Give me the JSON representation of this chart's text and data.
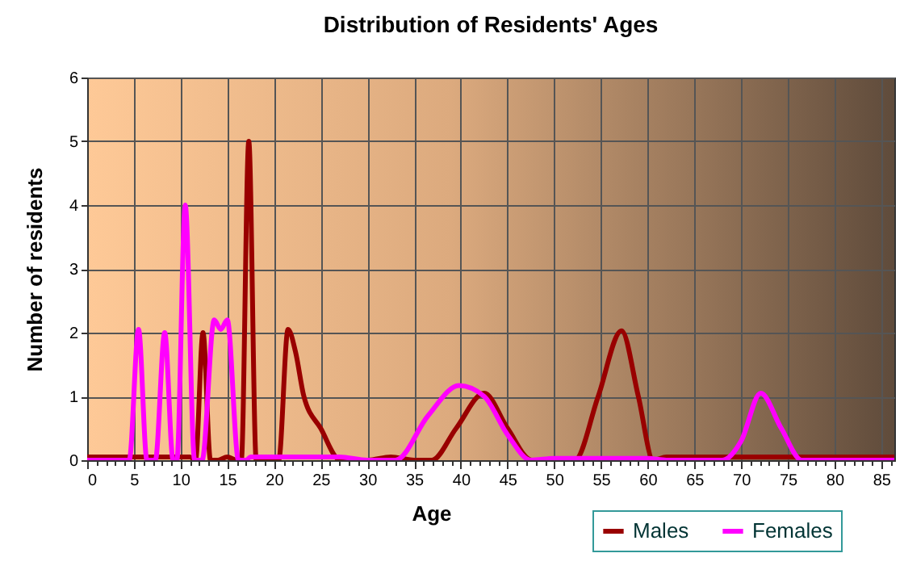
{
  "chart_data": {
    "type": "line",
    "title": "Distribution of Residents' Ages",
    "xlabel": "Age",
    "ylabel": "Number of residents",
    "xlim": [
      0,
      86.4
    ],
    "ylim": [
      0,
      6
    ],
    "yticks": [
      0,
      1,
      2,
      3,
      4,
      5,
      6
    ],
    "xticks": [
      0,
      {
        "value": 1,
        "label": null
      },
      {
        "value": 2,
        "label": null
      },
      {
        "value": 3,
        "label": null
      },
      {
        "value": 4,
        "label": null
      },
      5,
      {
        "value": 6,
        "label": null
      },
      {
        "value": 7,
        "label": null
      },
      {
        "value": 8,
        "label": null
      },
      {
        "value": 9,
        "label": null
      },
      10,
      {
        "value": 11,
        "label": null
      },
      {
        "value": 12,
        "label": null
      },
      {
        "value": 13,
        "label": null
      },
      {
        "value": 14,
        "label": null
      },
      15,
      {
        "value": 16,
        "label": null
      },
      {
        "value": 17,
        "label": null
      },
      {
        "value": 18,
        "label": null
      },
      {
        "value": 19,
        "label": null
      },
      20,
      {
        "value": 21,
        "label": null
      },
      {
        "value": 22,
        "label": null
      },
      {
        "value": 23,
        "label": null
      },
      {
        "value": 24,
        "label": null
      },
      25,
      {
        "value": 26,
        "label": null
      },
      {
        "value": 27,
        "label": null
      },
      {
        "value": 28,
        "label": null
      },
      {
        "value": 29,
        "label": null
      },
      30,
      {
        "value": 31,
        "label": null
      },
      {
        "value": 32,
        "label": null
      },
      {
        "value": 33,
        "label": null
      },
      {
        "value": 34,
        "label": null
      },
      35,
      {
        "value": 36,
        "label": null
      },
      {
        "value": 37,
        "label": null
      },
      {
        "value": 38,
        "label": null
      },
      {
        "value": 39,
        "label": null
      },
      40,
      {
        "value": 41,
        "label": null
      },
      {
        "value": 42,
        "label": null
      },
      {
        "value": 43,
        "label": null
      },
      {
        "value": 44,
        "label": null
      },
      45,
      {
        "value": 46,
        "label": null
      },
      {
        "value": 47,
        "label": null
      },
      {
        "value": 48,
        "label": null
      },
      {
        "value": 49,
        "label": null
      },
      50,
      {
        "value": 51,
        "label": null
      },
      {
        "value": 52,
        "label": null
      },
      {
        "value": 53,
        "label": null
      },
      {
        "value": 54,
        "label": null
      },
      55,
      {
        "value": 56,
        "label": null
      },
      {
        "value": 57,
        "label": null
      },
      {
        "value": 58,
        "label": null
      },
      {
        "value": 59,
        "label": null
      },
      60,
      {
        "value": 61,
        "label": null
      },
      {
        "value": 62,
        "label": null
      },
      {
        "value": 63,
        "label": null
      },
      {
        "value": 64,
        "label": null
      },
      65,
      {
        "value": 66,
        "label": null
      },
      {
        "value": 67,
        "label": null
      },
      {
        "value": 68,
        "label": null
      },
      {
        "value": 69,
        "label": null
      },
      70,
      {
        "value": 71,
        "label": null
      },
      {
        "value": 72,
        "label": null
      },
      {
        "value": 73,
        "label": null
      },
      {
        "value": 74,
        "label": null
      },
      75,
      {
        "value": 76,
        "label": null
      },
      {
        "value": 77,
        "label": null
      },
      {
        "value": 78,
        "label": null
      },
      {
        "value": 79,
        "label": null
      },
      80,
      {
        "value": 81,
        "label": null
      },
      {
        "value": 82,
        "label": null
      },
      {
        "value": 83,
        "label": null
      },
      {
        "value": 84,
        "label": null
      },
      85,
      {
        "value": 86,
        "label": null
      }
    ],
    "grid": true,
    "legend": "bottom right",
    "marker": "none",
    "line_style": "solid",
    "series": [
      {
        "name": "Males",
        "color": "#990000",
        "x": [
          0,
          11,
          11.6,
          12.4,
          13.2,
          14,
          15,
          16,
          16.5,
          17.3,
          18.1,
          19,
          20,
          20.5,
          21.5,
          22.3,
          23.2,
          25,
          27.1,
          30,
          32.5,
          35,
          36.9,
          39.5,
          42.5,
          45,
          47.6,
          50,
          52.2,
          54.7,
          57.2,
          59,
          60.6,
          62,
          70,
          80,
          86.4
        ],
        "values": [
          0.05,
          0.05,
          0,
          2,
          0,
          0,
          0.05,
          0,
          0,
          5,
          0,
          0,
          0,
          0,
          2.05,
          1.7,
          1,
          0.5,
          0,
          0,
          0.05,
          0,
          0,
          0.5,
          1.05,
          0.5,
          0,
          0,
          0,
          1,
          2.03,
          1,
          0,
          0.05,
          0.05,
          0.05,
          0.05
        ]
      },
      {
        "name": "Females",
        "color": "#ff00ff",
        "x": [
          0,
          4.5,
          5.5,
          6.4,
          7.3,
          8.3,
          9.2,
          9.6,
          10.5,
          11.5,
          12.3,
          13.6,
          14.3,
          15,
          16.2,
          17,
          17.5,
          27,
          30,
          33,
          36.5,
          39.8,
          42.5,
          45,
          47.5,
          50,
          60,
          62,
          68,
          70,
          72.1,
          74.3,
          76.5,
          86.4
        ],
        "values": [
          0,
          0,
          2.05,
          0,
          0,
          2,
          0,
          0,
          4,
          0,
          0,
          2.2,
          2.05,
          2.2,
          0,
          0,
          0.05,
          0.05,
          0,
          0,
          0.7,
          1.17,
          1,
          0.4,
          0,
          0.03,
          0.03,
          0,
          0,
          0.3,
          1.05,
          0.5,
          0,
          0
        ]
      }
    ]
  }
}
